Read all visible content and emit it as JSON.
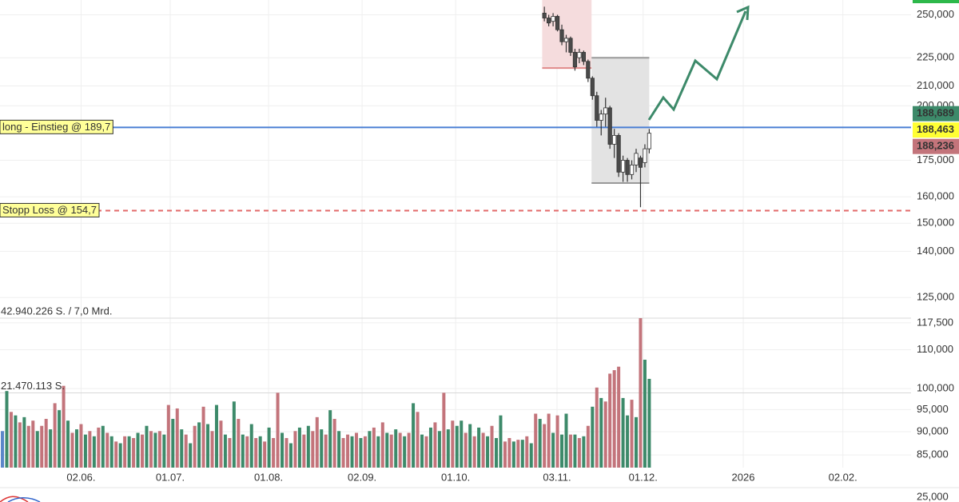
{
  "chart_data": {
    "type": "candlestick",
    "ylim": [
      82.4,
      259.2
    ],
    "log_scale": true,
    "grid": true,
    "yticks": [
      {
        "value": 250,
        "label": "250,000"
      },
      {
        "value": 225,
        "label": "225,000"
      },
      {
        "value": 210,
        "label": "210,000"
      },
      {
        "value": 200,
        "label": "200,000"
      },
      {
        "value": 175,
        "label": "175,000"
      },
      {
        "value": 160,
        "label": "160,000"
      },
      {
        "value": 150,
        "label": "150,000"
      },
      {
        "value": 140,
        "label": "140,000"
      },
      {
        "value": 125,
        "label": "125,000"
      },
      {
        "value": 117.5,
        "label": "117,500"
      },
      {
        "value": 110,
        "label": "110,000"
      },
      {
        "value": 100,
        "label": "100,000"
      },
      {
        "value": 95,
        "label": "95,000"
      },
      {
        "value": 90,
        "label": "90,000"
      },
      {
        "value": 85,
        "label": "85,000"
      }
    ],
    "xlim": [
      -0.55,
      207.9
    ],
    "xticks": [
      {
        "value": 18,
        "label": "02.06."
      },
      {
        "value": 38.4,
        "label": "01.07."
      },
      {
        "value": 60.9,
        "label": "01.08."
      },
      {
        "value": 82.3,
        "label": "02.09."
      },
      {
        "value": 103.7,
        "label": "01.10."
      },
      {
        "value": 126.9,
        "label": "03.11."
      },
      {
        "value": 146.6,
        "label": "01.12."
      },
      {
        "value": 169.5,
        "label": "2026"
      },
      {
        "value": 192.3,
        "label": "02.02."
      }
    ],
    "candles": {
      "x": [
        124,
        125,
        126,
        127,
        128,
        129,
        130,
        131,
        132,
        133,
        134,
        135,
        136,
        137,
        138,
        139,
        140,
        141,
        142,
        143,
        144,
        145,
        146,
        147,
        148
      ],
      "open": [
        251,
        248,
        246,
        249,
        241,
        234,
        236,
        228,
        225,
        228,
        223,
        214,
        205,
        193,
        196,
        199,
        182,
        186,
        170,
        175,
        169,
        173,
        176,
        174,
        180
      ],
      "high": [
        255,
        250,
        251,
        250,
        244,
        238,
        237,
        230,
        230,
        229,
        224,
        215,
        207,
        198,
        204,
        200,
        189,
        187,
        177,
        176,
        175,
        180,
        177,
        182,
        189
      ],
      "low": [
        246,
        243,
        243,
        240,
        232,
        228,
        226,
        218,
        222,
        221,
        212,
        203,
        190,
        186,
        190,
        180,
        176,
        168,
        166,
        166,
        167,
        170,
        156,
        172,
        178
      ],
      "close": [
        248,
        245,
        249,
        241,
        234,
        236,
        228,
        220,
        228,
        223,
        214,
        205,
        193,
        196,
        199,
        182,
        186,
        170,
        175,
        169,
        173,
        178,
        172,
        180,
        187
      ],
      "up_color": "#ffffff",
      "down_color": "#4a4a4a",
      "edge_color": "#333333"
    },
    "volume": {
      "vlim": [
        0,
        42940226
      ],
      "ticks": [
        {
          "value": 42940226,
          "label": "42.940.226 S. / 7,0 Mrd."
        },
        {
          "value": 21470113,
          "label": "21.470.113 S."
        }
      ],
      "x": [
        0,
        1,
        2,
        3,
        4,
        5,
        6,
        7,
        8,
        9,
        10,
        11,
        12,
        13,
        14,
        15,
        16,
        17,
        18,
        19,
        20,
        21,
        22,
        23,
        24,
        25,
        26,
        27,
        28,
        29,
        30,
        31,
        32,
        33,
        34,
        35,
        36,
        37,
        38,
        39,
        40,
        41,
        42,
        43,
        44,
        45,
        46,
        47,
        48,
        49,
        50,
        51,
        52,
        53,
        54,
        55,
        56,
        57,
        58,
        59,
        60,
        61,
        62,
        63,
        64,
        65,
        66,
        67,
        68,
        69,
        70,
        71,
        72,
        73,
        74,
        75,
        76,
        77,
        78,
        79,
        80,
        81,
        82,
        83,
        84,
        85,
        86,
        87,
        88,
        89,
        90,
        91,
        92,
        93,
        94,
        95,
        96,
        97,
        98,
        99,
        100,
        101,
        102,
        103,
        104,
        105,
        106,
        107,
        108,
        109,
        110,
        111,
        112,
        113,
        114,
        115,
        116,
        117,
        118,
        119,
        120,
        121,
        122,
        123,
        124,
        125,
        126,
        127,
        128,
        129,
        130,
        131,
        132,
        133,
        134,
        135,
        136,
        137,
        138,
        139,
        140,
        141,
        142,
        143,
        144,
        145,
        146,
        147,
        148
      ],
      "values": [
        10500000,
        22000000,
        16000000,
        15000000,
        13000000,
        14500000,
        12000000,
        13500000,
        10500000,
        12000000,
        14000000,
        11000000,
        18500000,
        16500000,
        23500000,
        13500000,
        10000000,
        11000000,
        12500000,
        9500000,
        10500000,
        9000000,
        11500000,
        12000000,
        10000000,
        9000000,
        7500000,
        7000000,
        9000000,
        9000000,
        8500000,
        10000000,
        9500000,
        12000000,
        10500000,
        10000000,
        10500000,
        9500000,
        18000000,
        14000000,
        17000000,
        11000000,
        9500000,
        7000000,
        12000000,
        13000000,
        17500000,
        12500000,
        10500000,
        18000000,
        13500000,
        9500000,
        8500000,
        19000000,
        14000000,
        9500000,
        9000000,
        12500000,
        8500000,
        9000000,
        7500000,
        11500000,
        8500000,
        21500000,
        10000000,
        8500000,
        7000000,
        10500000,
        11500000,
        9500000,
        12000000,
        10500000,
        14500000,
        11000000,
        9500000,
        16500000,
        14000000,
        10500000,
        8500000,
        9500000,
        9000000,
        10000000,
        8500000,
        9000000,
        10500000,
        11500000,
        9000000,
        13000000,
        10000000,
        9500000,
        11000000,
        10000000,
        9000000,
        10000000,
        18500000,
        16000000,
        9500000,
        9000000,
        11500000,
        13000000,
        10500000,
        21500000,
        11000000,
        13500000,
        12000000,
        13500000,
        10000000,
        12500000,
        9000000,
        11500000,
        10000000,
        9000000,
        12000000,
        8500000,
        15000000,
        7500000,
        8500000,
        7500000,
        8000000,
        8000000,
        9000000,
        7000000,
        15500000,
        14000000,
        12500000,
        15500000,
        10000000,
        15000000,
        9500000,
        15500000,
        9500000,
        9500000,
        8500000,
        9000000,
        12000000,
        17500000,
        23000000,
        20000000,
        19000000,
        27000000,
        28000000,
        29000000,
        20000000,
        15000000,
        19500000,
        14500000,
        42940226,
        31000000,
        25500000
      ],
      "colors": [
        "#5b86c9",
        "#3d8a6a",
        "#c3747b",
        "#3d8a6a",
        "#c3747b",
        "#3d8a6a",
        "#c3747b",
        "#c3747b",
        "#3d8a6a",
        "#c3747b",
        "#c3747b",
        "#3d8a6a",
        "#c3747b",
        "#3d8a6a",
        "#c3747b",
        "#3d8a6a",
        "#c3747b",
        "#3d8a6a",
        "#c3747b",
        "#3d8a6a",
        "#c3747b",
        "#3d8a6a",
        "#c3747b",
        "#3d8a6a",
        "#c3747b",
        "#3d8a6a",
        "#c3747b",
        "#3d8a6a",
        "#c3747b",
        "#3d8a6a",
        "#c3747b",
        "#3d8a6a",
        "#c3747b",
        "#3d8a6a",
        "#c3747b",
        "#3d8a6a",
        "#c3747b",
        "#3d8a6a",
        "#c3747b",
        "#3d8a6a",
        "#c3747b",
        "#3d8a6a",
        "#c3747b",
        "#3d8a6a",
        "#c3747b",
        "#3d8a6a",
        "#c3747b",
        "#3d8a6a",
        "#c3747b",
        "#3d8a6a",
        "#c3747b",
        "#3d8a6a",
        "#c3747b",
        "#3d8a6a",
        "#c3747b",
        "#3d8a6a",
        "#c3747b",
        "#3d8a6a",
        "#c3747b",
        "#3d8a6a",
        "#c3747b",
        "#3d8a6a",
        "#c3747b",
        "#c3747b",
        "#3d8a6a",
        "#c3747b",
        "#3d8a6a",
        "#c3747b",
        "#3d8a6a",
        "#c3747b",
        "#3d8a6a",
        "#c3747b",
        "#c3747b",
        "#3d8a6a",
        "#c3747b",
        "#3d8a6a",
        "#c3747b",
        "#3d8a6a",
        "#c3747b",
        "#c3747b",
        "#3d8a6a",
        "#c3747b",
        "#3d8a6a",
        "#c3747b",
        "#3d8a6a",
        "#c3747b",
        "#3d8a6a",
        "#c3747b",
        "#3d8a6a",
        "#c3747b",
        "#3d8a6a",
        "#c3747b",
        "#3d8a6a",
        "#c3747b",
        "#3d8a6a",
        "#c3747b",
        "#3d8a6a",
        "#c3747b",
        "#3d8a6a",
        "#c3747b",
        "#3d8a6a",
        "#c3747b",
        "#3d8a6a",
        "#c3747b",
        "#3d8a6a",
        "#3d8a6a",
        "#c3747b",
        "#3d8a6a",
        "#c3747b",
        "#3d8a6a",
        "#c3747b",
        "#3d8a6a",
        "#c3747b",
        "#3d8a6a",
        "#3d8a6a",
        "#c3747b",
        "#c3747b",
        "#3d8a6a",
        "#c3747b",
        "#3d8a6a",
        "#c3747b",
        "#3d8a6a",
        "#c3747b",
        "#3d8a6a",
        "#c3747b",
        "#c3747b",
        "#3d8a6a",
        "#c3747b",
        "#3d8a6a",
        "#3d8a6a",
        "#c3747b",
        "#3d8a6a",
        "#c3747b",
        "#3d8a6a",
        "#c3747b",
        "#3d8a6a",
        "#c3747b",
        "#3d8a6a",
        "#c3747b",
        "#c3747b",
        "#c3747b",
        "#c3747b",
        "#3d8a6a",
        "#3d8a6a",
        "#c3747b",
        "#3d8a6a",
        "#c3747b",
        "#3d8a6a",
        "#3d8a6a"
      ]
    },
    "levels": [
      {
        "value": 189.7,
        "label": "long - Einstieg @ 189,7",
        "color": "#4a7fd4",
        "dashed": false
      },
      {
        "value": 154.7,
        "label": "Stopp Loss @ 154,7",
        "color": "#e36a6a",
        "dashed": true
      }
    ],
    "zones": [
      {
        "xrange": [
          123.5,
          134.8
        ],
        "yrange": [
          219.4,
          259.2
        ],
        "fill": "#f5dcdd",
        "edge": "#e08a8a"
      },
      {
        "xrange": [
          134.8,
          148
        ],
        "yrange": [
          165.5,
          225
        ],
        "fill": "#e3e3e3",
        "edge": "#999999"
      }
    ],
    "price_badges": [
      {
        "value": 188.689,
        "label": "188,689",
        "bg": "#3d8a6a",
        "fg": "#ffffff"
      },
      {
        "value": 188.463,
        "label": "188,463",
        "bg": "#ffff33",
        "fg": "#000000"
      },
      {
        "value": 188.236,
        "label": "188,236",
        "bg": "#c3747b",
        "fg": "#ffffff"
      }
    ],
    "lower_pane_tick": {
      "value": 25,
      "label": "25,000"
    }
  }
}
